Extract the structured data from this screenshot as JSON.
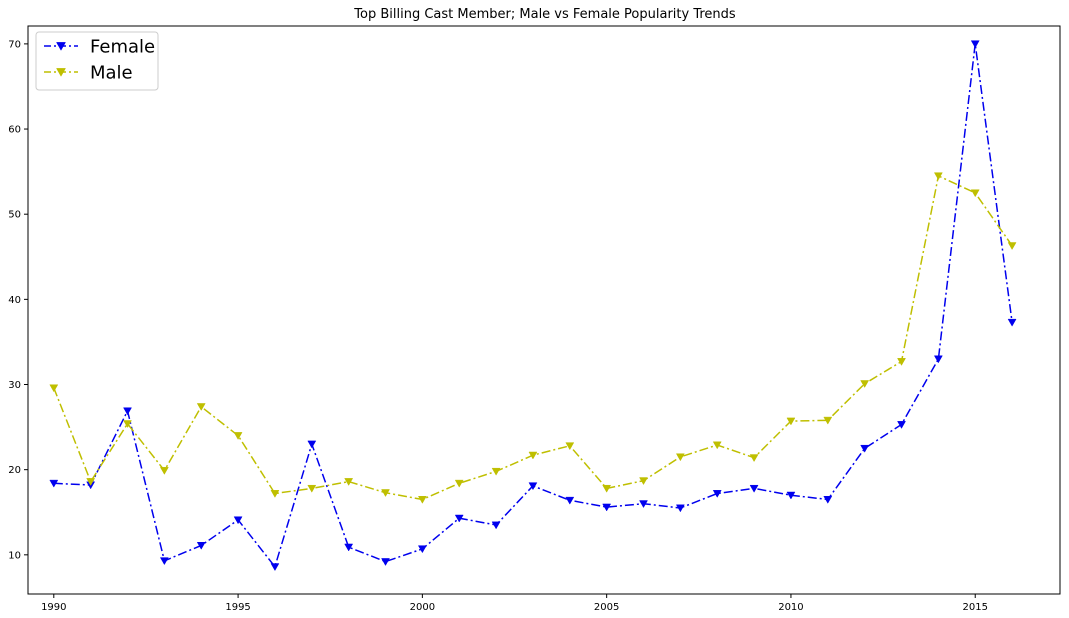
{
  "chart_data": {
    "type": "line",
    "title": "Top Billing Cast Member; Male vs Female Popularity Trends",
    "xlabel": "",
    "ylabel": "",
    "x": [
      1990,
      1991,
      1992,
      1993,
      1994,
      1995,
      1996,
      1997,
      1998,
      1999,
      2000,
      2001,
      2002,
      2003,
      2004,
      2005,
      2006,
      2007,
      2008,
      2009,
      2010,
      2011,
      2012,
      2013,
      2014,
      2015,
      2016
    ],
    "xlim": [
      1989.3,
      2017.3
    ],
    "ylim": [
      5.4,
      72.1
    ],
    "xticks": [
      1990,
      1995,
      2000,
      2005,
      2010,
      2015
    ],
    "yticks": [
      10,
      20,
      30,
      40,
      50,
      60,
      70
    ],
    "grid": false,
    "legend_position": "top-left",
    "series": [
      {
        "name": "Female",
        "color": "#0000ee",
        "marker": "triangle-down",
        "line_style": "dash-dot",
        "values": [
          18.4,
          18.2,
          26.9,
          9.3,
          11.1,
          14.1,
          8.6,
          23.0,
          10.9,
          9.2,
          10.7,
          14.3,
          13.5,
          18.1,
          16.4,
          15.6,
          16.0,
          15.5,
          17.2,
          17.8,
          17.0,
          16.5,
          22.5,
          25.3,
          33.0,
          70.0,
          37.3
        ]
      },
      {
        "name": "Male",
        "color": "#bfbf00",
        "marker": "triangle-down",
        "line_style": "dash-dot",
        "values": [
          29.6,
          18.6,
          25.4,
          19.9,
          27.4,
          24.0,
          17.2,
          17.8,
          18.6,
          17.3,
          16.5,
          18.4,
          19.8,
          21.7,
          22.8,
          17.8,
          18.7,
          21.5,
          22.9,
          21.4,
          25.7,
          25.8,
          30.1,
          32.7,
          54.5,
          52.5,
          46.3
        ]
      }
    ]
  }
}
